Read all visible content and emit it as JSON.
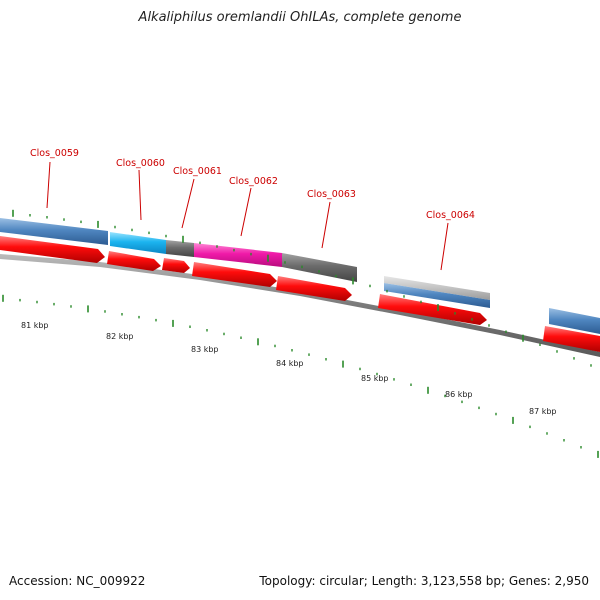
{
  "title": "Alkaliphilus oremlandii OhILAs, complete genome",
  "accession": "Accession: NC_009922",
  "summary": "Topology: circular; Length: 3,123,558 bp; Genes: 2,950",
  "colors": {
    "tick": "#2a8a2a",
    "label": "#cc0000",
    "backbone": "#777777",
    "cds_strand": "#e01010"
  },
  "gene_labels": [
    {
      "name": "Clos_0059"
    },
    {
      "name": "Clos_0060"
    },
    {
      "name": "Clos_0061"
    },
    {
      "name": "Clos_0062"
    },
    {
      "name": "Clos_0063"
    },
    {
      "name": "Clos_0064"
    }
  ],
  "kbp_labels": [
    "81 kbp",
    "82 kbp",
    "83 kbp",
    "84 kbp",
    "85 kbp",
    "86 kbp",
    "87 kbp"
  ]
}
